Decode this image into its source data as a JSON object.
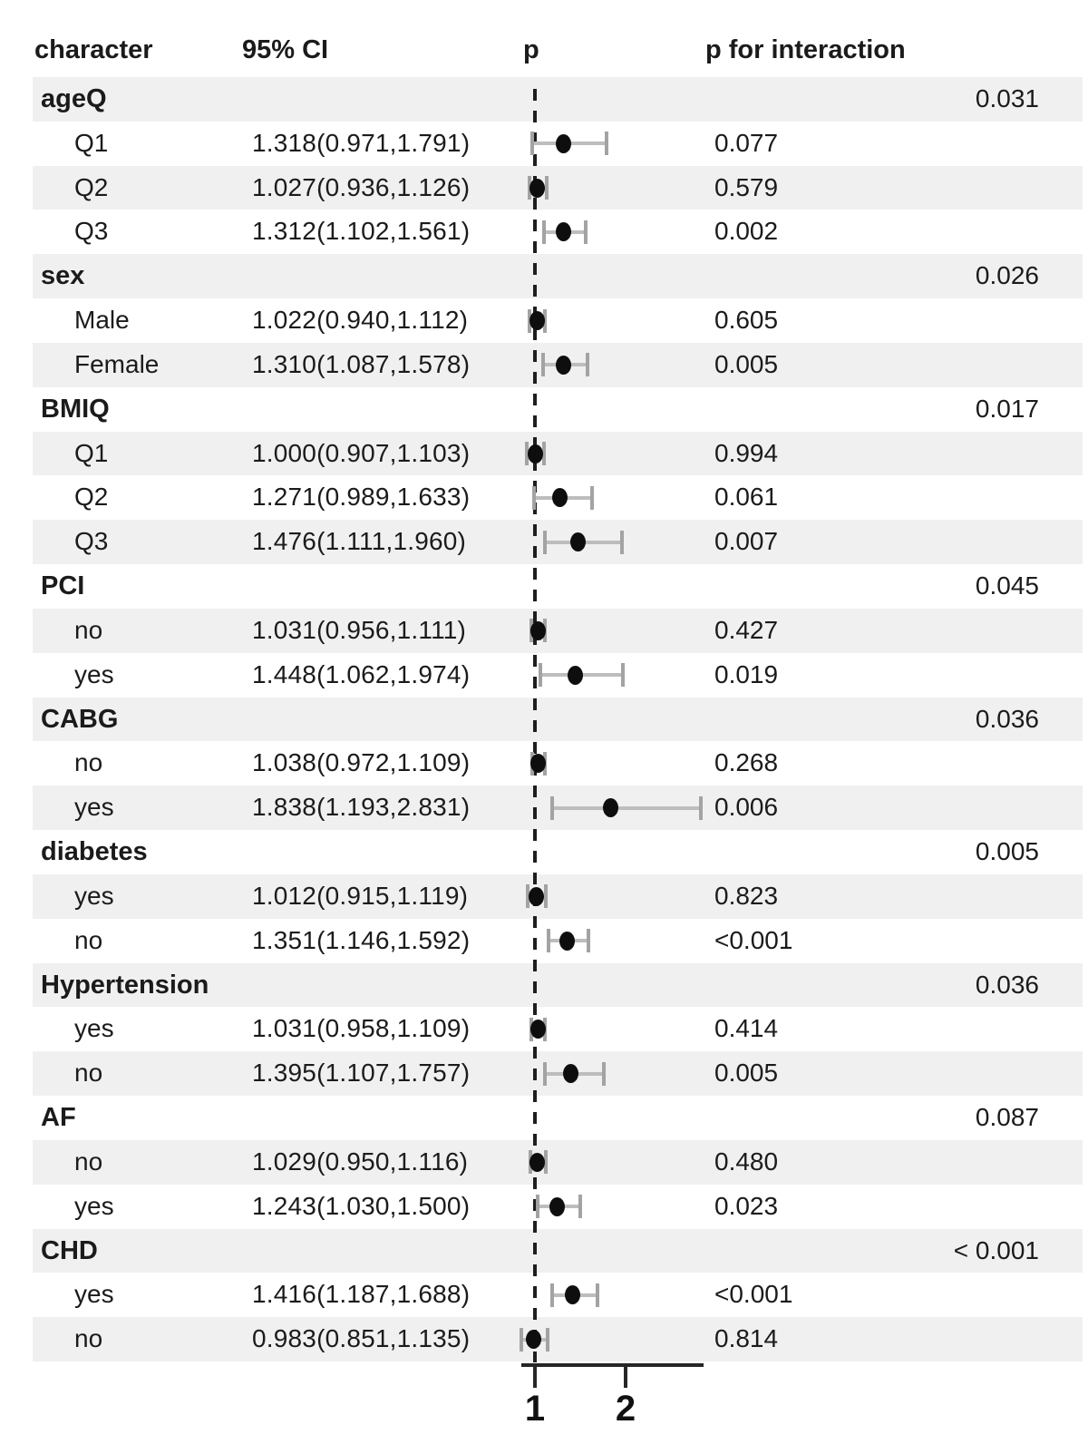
{
  "header": {
    "character": "character",
    "ci": "95% CI",
    "p": "p",
    "p_interaction": "p for interaction"
  },
  "axis": {
    "tick_labels": [
      "1",
      "2"
    ],
    "tick_values": [
      1,
      2
    ],
    "range": [
      0.85,
      2.85
    ],
    "scale": "linear"
  },
  "colors": {
    "stripe": "#f0f0f0",
    "text": "#1b1b1b",
    "point": "#0e0e0e",
    "error_bar": "#bdbdbd",
    "error_cap": "#a3a3a3",
    "reference_line": "#1e1e1e",
    "axis": "#262626"
  },
  "chart_data": {
    "type": "forest",
    "reference_line": 1,
    "x_scale": "linear",
    "x_ticks": [
      1,
      2
    ],
    "columns": [
      "character",
      "95% CI",
      "p",
      "p for interaction"
    ],
    "groups": [
      {
        "label": "ageQ",
        "p_for_interaction": "0.031",
        "items": [
          {
            "label": "Q1",
            "ci_text": "1.318(0.971,1.791)",
            "estimate": 1.318,
            "low": 0.971,
            "high": 1.791,
            "p": "0.077"
          },
          {
            "label": "Q2",
            "ci_text": "1.027(0.936,1.126)",
            "estimate": 1.027,
            "low": 0.936,
            "high": 1.126,
            "p": "0.579"
          },
          {
            "label": "Q3",
            "ci_text": "1.312(1.102,1.561)",
            "estimate": 1.312,
            "low": 1.102,
            "high": 1.561,
            "p": "0.002"
          }
        ]
      },
      {
        "label": "sex",
        "p_for_interaction": "0.026",
        "items": [
          {
            "label": "Male",
            "ci_text": "1.022(0.940,1.112)",
            "estimate": 1.022,
            "low": 0.94,
            "high": 1.112,
            "p": "0.605"
          },
          {
            "label": "Female",
            "ci_text": "1.310(1.087,1.578)",
            "estimate": 1.31,
            "low": 1.087,
            "high": 1.578,
            "p": "0.005"
          }
        ]
      },
      {
        "label": "BMIQ",
        "p_for_interaction": "0.017",
        "items": [
          {
            "label": "Q1",
            "ci_text": "1.000(0.907,1.103)",
            "estimate": 1.0,
            "low": 0.907,
            "high": 1.103,
            "p": "0.994"
          },
          {
            "label": "Q2",
            "ci_text": "1.271(0.989,1.633)",
            "estimate": 1.271,
            "low": 0.989,
            "high": 1.633,
            "p": "0.061"
          },
          {
            "label": "Q3",
            "ci_text": "1.476(1.111,1.960)",
            "estimate": 1.476,
            "low": 1.111,
            "high": 1.96,
            "p": "0.007"
          }
        ]
      },
      {
        "label": "PCI",
        "p_for_interaction": "0.045",
        "items": [
          {
            "label": "no",
            "ci_text": "1.031(0.956,1.111)",
            "estimate": 1.031,
            "low": 0.956,
            "high": 1.111,
            "p": "0.427"
          },
          {
            "label": "yes",
            "ci_text": "1.448(1.062,1.974)",
            "estimate": 1.448,
            "low": 1.062,
            "high": 1.974,
            "p": "0.019"
          }
        ]
      },
      {
        "label": "CABG",
        "p_for_interaction": "0.036",
        "items": [
          {
            "label": "no",
            "ci_text": "1.038(0.972,1.109)",
            "estimate": 1.038,
            "low": 0.972,
            "high": 1.109,
            "p": "0.268"
          },
          {
            "label": "yes",
            "ci_text": "1.838(1.193,2.831)",
            "estimate": 1.838,
            "low": 1.193,
            "high": 2.831,
            "p": "0.006"
          }
        ]
      },
      {
        "label": "diabetes",
        "p_for_interaction": "0.005",
        "items": [
          {
            "label": "yes",
            "ci_text": "1.012(0.915,1.119)",
            "estimate": 1.012,
            "low": 0.915,
            "high": 1.119,
            "p": "0.823"
          },
          {
            "label": "no",
            "ci_text": "1.351(1.146,1.592)",
            "estimate": 1.351,
            "low": 1.146,
            "high": 1.592,
            "p": "<0.001"
          }
        ]
      },
      {
        "label": "Hypertension",
        "p_for_interaction": "0.036",
        "items": [
          {
            "label": "yes",
            "ci_text": "1.031(0.958,1.109)",
            "estimate": 1.031,
            "low": 0.958,
            "high": 1.109,
            "p": "0.414"
          },
          {
            "label": "no",
            "ci_text": "1.395(1.107,1.757)",
            "estimate": 1.395,
            "low": 1.107,
            "high": 1.757,
            "p": "0.005"
          }
        ]
      },
      {
        "label": "AF",
        "p_for_interaction": "0.087",
        "items": [
          {
            "label": "no",
            "ci_text": "1.029(0.950,1.116)",
            "estimate": 1.029,
            "low": 0.95,
            "high": 1.116,
            "p": "0.480"
          },
          {
            "label": "yes",
            "ci_text": "1.243(1.030,1.500)",
            "estimate": 1.243,
            "low": 1.03,
            "high": 1.5,
            "p": "0.023"
          }
        ]
      },
      {
        "label": "CHD",
        "p_for_interaction": "< 0.001",
        "items": [
          {
            "label": "yes",
            "ci_text": "1.416(1.187,1.688)",
            "estimate": 1.416,
            "low": 1.187,
            "high": 1.688,
            "p": "<0.001"
          },
          {
            "label": "no",
            "ci_text": "0.983(0.851,1.135)",
            "estimate": 0.983,
            "low": 0.851,
            "high": 1.135,
            "p": "0.814"
          }
        ]
      }
    ]
  }
}
